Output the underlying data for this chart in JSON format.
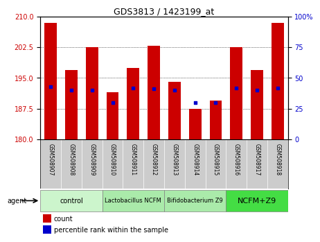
{
  "title": "GDS3813 / 1423199_at",
  "samples": [
    "GSM508907",
    "GSM508908",
    "GSM508909",
    "GSM508910",
    "GSM508911",
    "GSM508912",
    "GSM508913",
    "GSM508914",
    "GSM508915",
    "GSM508916",
    "GSM508917",
    "GSM508918"
  ],
  "bar_values": [
    208.5,
    197.0,
    202.5,
    191.5,
    197.5,
    202.8,
    194.0,
    187.5,
    189.5,
    202.5,
    197.0,
    208.5
  ],
  "percentile_values": [
    43,
    40,
    40,
    30,
    42,
    41,
    40,
    30,
    30,
    42,
    40,
    42
  ],
  "ylim_left": [
    180,
    210
  ],
  "ylim_right": [
    0,
    100
  ],
  "yticks_left": [
    180,
    187.5,
    195,
    202.5,
    210
  ],
  "yticks_right": [
    0,
    25,
    50,
    75,
    100
  ],
  "bar_color": "#cc0000",
  "dot_color": "#0000cc",
  "bar_width": 0.6,
  "groups": [
    {
      "label": "control",
      "start": 0,
      "end": 3,
      "color": "#ccf5cc",
      "fontsize": 7
    },
    {
      "label": "Lactobacillus NCFM",
      "start": 3,
      "end": 6,
      "color": "#aaeaaa",
      "fontsize": 6
    },
    {
      "label": "Bifidobacterium Z9",
      "start": 6,
      "end": 9,
      "color": "#aaeaaa",
      "fontsize": 6
    },
    {
      "label": "NCFM+Z9",
      "start": 9,
      "end": 12,
      "color": "#44dd44",
      "fontsize": 8
    }
  ],
  "sample_bg_color": "#cccccc",
  "tick_color_left": "#cc0000",
  "tick_color_right": "#0000cc",
  "background_color": "#ffffff",
  "legend_count_label": "count",
  "legend_pct_label": "percentile rank within the sample"
}
